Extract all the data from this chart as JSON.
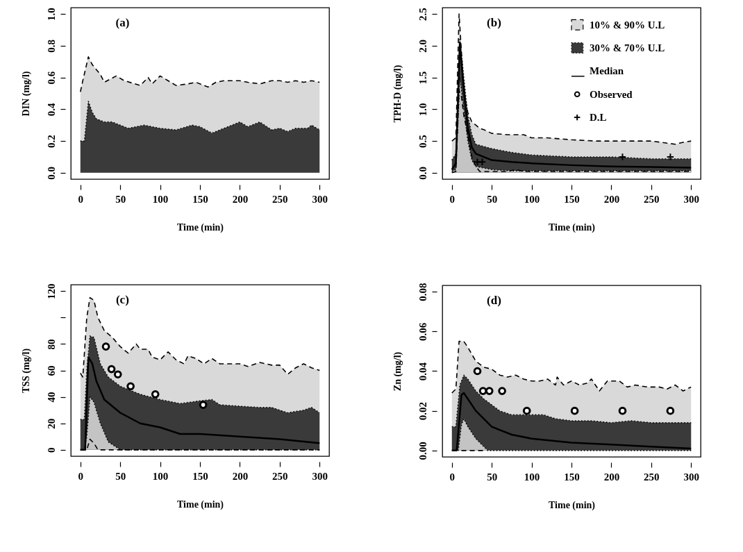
{
  "chart_data": [
    {
      "type": "area",
      "title": "(a)",
      "xlabel": "Time (min)",
      "ylabel": "DIN (mg/l)",
      "xlim": [
        -12,
        312
      ],
      "ylim": [
        -0.04,
        1.04
      ],
      "xticks": [
        0,
        50,
        100,
        150,
        200,
        250,
        300
      ],
      "yticks": [
        {
          "value": 0,
          "label": "0.0"
        },
        {
          "value": 0.2,
          "label": "0.2"
        },
        {
          "value": 0.4,
          "label": "0.4"
        },
        {
          "value": 0.6,
          "label": "0.6"
        },
        {
          "value": 0.8,
          "label": "0.8"
        },
        {
          "value": 1,
          "label": "1.0"
        }
      ],
      "series": [
        {
          "color": "#d9d9d9",
          "line_style": "dashed",
          "x": [
            0,
            3,
            10,
            15,
            20,
            25,
            30,
            45,
            55,
            75,
            85,
            90,
            100,
            110,
            120,
            135,
            145,
            160,
            170,
            180,
            190,
            200,
            210,
            225,
            240,
            250,
            260,
            270,
            280,
            290,
            300
          ],
          "values": [
            0.51,
            0.58,
            0.73,
            0.68,
            0.65,
            0.62,
            0.57,
            0.61,
            0.58,
            0.55,
            0.6,
            0.56,
            0.61,
            0.58,
            0.55,
            0.56,
            0.57,
            0.54,
            0.57,
            0.58,
            0.58,
            0.58,
            0.57,
            0.56,
            0.58,
            0.58,
            0.57,
            0.58,
            0.57,
            0.58,
            0.57
          ]
        },
        {
          "color": "#3a3a3a",
          "line_style": "dotted",
          "x": [
            0,
            5,
            8,
            10,
            15,
            20,
            30,
            40,
            50,
            60,
            80,
            100,
            120,
            140,
            150,
            165,
            180,
            200,
            210,
            225,
            240,
            250,
            260,
            270,
            285,
            290,
            300
          ],
          "values": [
            0.2,
            0.2,
            0.35,
            0.45,
            0.38,
            0.34,
            0.32,
            0.32,
            0.3,
            0.28,
            0.3,
            0.28,
            0.27,
            0.3,
            0.29,
            0.25,
            0.28,
            0.32,
            0.29,
            0.32,
            0.27,
            0.28,
            0.26,
            0.28,
            0.28,
            0.3,
            0.27
          ]
        }
      ]
    },
    {
      "type": "line",
      "title": "(b)",
      "xlabel": "Time (min)",
      "ylabel": "TPH-D (mg/l)",
      "legend": "top right",
      "xlim": [
        -12,
        312
      ],
      "ylim": [
        -0.1,
        2.6
      ],
      "xticks": [
        0,
        50,
        100,
        150,
        200,
        250,
        300
      ],
      "yticks": [
        {
          "value": 0,
          "label": "0.0"
        },
        {
          "value": 0.5,
          "label": "0.5"
        },
        {
          "value": 1,
          "label": "1.0"
        },
        {
          "value": 1.5,
          "label": "1.5"
        },
        {
          "value": 2,
          "label": "2.0"
        },
        {
          "value": 2.5,
          "label": "2.5"
        }
      ],
      "series": [
        {
          "name": "10% & 90% U.L",
          "type": "area",
          "color": "#d9d9d9",
          "line_style": "dashed",
          "x": [
            0,
            5,
            9,
            12,
            15,
            20,
            25,
            30,
            35,
            40,
            50,
            70,
            80,
            90,
            100,
            120,
            150,
            180,
            200,
            250,
            280,
            290,
            300
          ],
          "values": [
            0.5,
            0.55,
            2.5,
            1.9,
            1.3,
            0.95,
            0.8,
            0.75,
            0.7,
            0.68,
            0.62,
            0.6,
            0.6,
            0.6,
            0.55,
            0.55,
            0.52,
            0.5,
            0.5,
            0.5,
            0.45,
            0.48,
            0.5
          ]
        },
        {
          "name": "30% & 70% U.L",
          "type": "area",
          "color": "#3a3a3a",
          "line_style": "dotted",
          "x": [
            0,
            5,
            10,
            15,
            20,
            25,
            30,
            50,
            75,
            100,
            150,
            200,
            250,
            300
          ],
          "values": [
            0.2,
            0.3,
            2.1,
            1.5,
            0.9,
            0.6,
            0.45,
            0.38,
            0.32,
            0.28,
            0.25,
            0.25,
            0.22,
            0.22
          ]
        },
        {
          "type": "area",
          "color": "#c4c4c4",
          "line_style": "dotted",
          "x": [
            0,
            5,
            10,
            15,
            20,
            25,
            30,
            50,
            75,
            100,
            150,
            200,
            250,
            300
          ],
          "values": [
            0.02,
            0.05,
            1.5,
            1,
            0.5,
            0.2,
            0.1,
            0.05,
            0.03,
            0.03,
            0.03,
            0.03,
            0.03,
            0.03
          ]
        },
        {
          "color": "#000000",
          "line_style": "dashed",
          "x": [
            0,
            5,
            9,
            12,
            15,
            20,
            25,
            30,
            35,
            40,
            50,
            70,
            80,
            90,
            100,
            120,
            150,
            180,
            200,
            250,
            280,
            290,
            300
          ],
          "values": [
            0,
            0.02,
            1.3,
            1.2,
            0.9,
            0.6,
            0.25,
            0.1,
            0.02,
            0.02,
            0.02,
            0.02,
            0.05,
            0.02,
            0.02,
            0.02,
            0.02,
            0.02,
            0.02,
            0.02,
            0.02,
            0.02,
            0.02
          ]
        },
        {
          "name": "Median",
          "color": "#000000",
          "line_style": "solid",
          "x": [
            0,
            5,
            10,
            15,
            20,
            25,
            30,
            50,
            75,
            100,
            150,
            200,
            250,
            300
          ],
          "values": [
            0.05,
            0.15,
            2.05,
            1.3,
            0.7,
            0.4,
            0.3,
            0.2,
            0.17,
            0.15,
            0.12,
            0.1,
            0.09,
            0.08
          ]
        },
        {
          "name": "Observed",
          "type": "scatter",
          "color": "#000000",
          "marker": "circle"
        },
        {
          "name": "D.L",
          "type": "scatter",
          "color": "#000000",
          "marker": "cross",
          "x": [
            32,
            38,
            214,
            274
          ],
          "values": [
            0.17,
            0.17,
            0.25,
            0.25
          ]
        }
      ]
    },
    {
      "type": "line",
      "title": "(c)",
      "xlabel": "Time (min)",
      "ylabel": "TSS (mg/l)",
      "xlim": [
        -12,
        312
      ],
      "ylim": [
        -4.8,
        124.8
      ],
      "xticks": [
        0,
        50,
        100,
        150,
        200,
        250,
        300
      ],
      "yticks": [
        0,
        20,
        40,
        60,
        80,
        {
          "value": 100,
          "label": null
        },
        120
      ],
      "series": [
        {
          "type": "area",
          "color": "#d9d9d9",
          "line_style": "dashed",
          "x": [
            0,
            3,
            8,
            12,
            17,
            22,
            30,
            40,
            50,
            60,
            70,
            75,
            85,
            90,
            100,
            110,
            120,
            130,
            135,
            145,
            155,
            165,
            175,
            185,
            200,
            210,
            225,
            240,
            250,
            260,
            270,
            280,
            290,
            300
          ],
          "values": [
            58,
            55,
            100,
            115,
            113,
            100,
            90,
            85,
            78,
            73,
            80,
            76,
            76,
            70,
            68,
            74,
            68,
            65,
            71,
            69,
            65,
            69,
            65,
            65,
            65,
            63,
            66,
            64,
            64,
            57,
            62,
            65,
            62,
            60
          ]
        },
        {
          "type": "area",
          "color": "#3a3a3a",
          "line_style": "dotted",
          "x": [
            0,
            5,
            8,
            12,
            17,
            25,
            35,
            50,
            75,
            100,
            125,
            150,
            165,
            175,
            200,
            225,
            240,
            260,
            280,
            290,
            300
          ],
          "values": [
            23,
            23,
            60,
            86,
            85,
            65,
            55,
            48,
            42,
            38,
            35,
            37,
            38,
            34,
            33,
            32,
            32,
            28,
            30,
            32,
            28
          ]
        },
        {
          "type": "area",
          "color": "#c4c4c4",
          "line_style": "dotted",
          "x": [
            0,
            5,
            8,
            12,
            17,
            25,
            35,
            50,
            75,
            100,
            125,
            150,
            165,
            175,
            200,
            225,
            240,
            260,
            280,
            290,
            300
          ],
          "values": [
            0,
            0,
            10,
            40,
            36,
            20,
            6,
            0,
            0,
            0,
            0,
            0,
            0,
            0,
            0,
            0,
            0,
            0,
            0,
            0,
            0
          ]
        },
        {
          "color": "#000000",
          "line_style": "dashed",
          "x": [
            0,
            8,
            12,
            17,
            22,
            300
          ],
          "values": [
            0,
            0,
            8,
            5,
            0,
            0
          ]
        },
        {
          "color": "#000000",
          "line_style": "solid",
          "x": [
            0,
            6,
            10,
            15,
            20,
            30,
            50,
            75,
            100,
            125,
            150,
            200,
            250,
            300
          ],
          "values": [
            0,
            0,
            70,
            65,
            52,
            38,
            28,
            20,
            17,
            12,
            12,
            10,
            8,
            5
          ]
        },
        {
          "type": "scatter",
          "color": "#000000",
          "marker": "circle",
          "x": [
            32,
            39,
            47,
            63,
            94,
            154
          ],
          "values": [
            78,
            61,
            57,
            48,
            42,
            34
          ]
        }
      ]
    },
    {
      "type": "line",
      "title": "(d)",
      "xlabel": "Time (min)",
      "ylabel": "Zn (mg/l)",
      "xlim": [
        -12,
        312
      ],
      "ylim": [
        -0.0032,
        0.0832
      ],
      "xticks": [
        0,
        50,
        100,
        150,
        200,
        250,
        300
      ],
      "yticks": [
        {
          "value": 0,
          "label": "0.00"
        },
        {
          "value": 0.02,
          "label": "0.02"
        },
        {
          "value": 0.04,
          "label": "0.04"
        },
        {
          "value": 0.06,
          "label": "0.06"
        },
        {
          "value": 0.08,
          "label": "0.08"
        }
      ],
      "series": [
        {
          "type": "area",
          "color": "#d9d9d9",
          "line_style": "dashed",
          "x": [
            0,
            5,
            9,
            15,
            20,
            30,
            40,
            50,
            60,
            70,
            80,
            90,
            100,
            110,
            120,
            130,
            132,
            140,
            150,
            160,
            170,
            175,
            185,
            195,
            210,
            220,
            230,
            245,
            260,
            270,
            280,
            290,
            300
          ],
          "values": [
            0.029,
            0.031,
            0.055,
            0.055,
            0.052,
            0.045,
            0.042,
            0.041,
            0.038,
            0.037,
            0.038,
            0.036,
            0.035,
            0.035,
            0.036,
            0.033,
            0.037,
            0.033,
            0.035,
            0.033,
            0.034,
            0.036,
            0.03,
            0.035,
            0.035,
            0.032,
            0.033,
            0.032,
            0.032,
            0.031,
            0.033,
            0.03,
            0.032
          ]
        },
        {
          "type": "area",
          "color": "#3a3a3a",
          "line_style": "dotted",
          "x": [
            0,
            5,
            10,
            15,
            20,
            30,
            40,
            50,
            60,
            75,
            100,
            115,
            130,
            150,
            175,
            200,
            225,
            250,
            275,
            300
          ],
          "values": [
            0.012,
            0.012,
            0.033,
            0.038,
            0.036,
            0.03,
            0.026,
            0.023,
            0.02,
            0.018,
            0.018,
            0.018,
            0.016,
            0.015,
            0.015,
            0.014,
            0.015,
            0.014,
            0.014,
            0.014
          ]
        },
        {
          "type": "area",
          "color": "#c4c4c4",
          "line_style": "dotted",
          "x": [
            0,
            8,
            12,
            15,
            20,
            30,
            40,
            45,
            300
          ],
          "values": [
            0,
            0,
            0.013,
            0.016,
            0.012,
            0.006,
            0.002,
            0,
            0
          ]
        },
        {
          "color": "#000000",
          "line_style": "dashed",
          "x": [
            12,
            40
          ],
          "values": [
            0,
            0
          ]
        },
        {
          "color": "#000000",
          "line_style": "solid",
          "x": [
            0,
            6,
            12,
            15,
            20,
            30,
            50,
            75,
            100,
            150,
            200,
            250,
            300
          ],
          "values": [
            0,
            0,
            0.028,
            0.029,
            0.026,
            0.02,
            0.012,
            0.008,
            0.006,
            0.004,
            0.003,
            0.002,
            0.001
          ]
        },
        {
          "type": "scatter",
          "color": "#000000",
          "marker": "circle",
          "x": [
            32,
            39,
            47,
            63,
            94,
            154,
            214,
            274
          ],
          "values": [
            0.04,
            0.03,
            0.03,
            0.03,
            0.02,
            0.02,
            0.02,
            0.02
          ]
        }
      ]
    }
  ]
}
